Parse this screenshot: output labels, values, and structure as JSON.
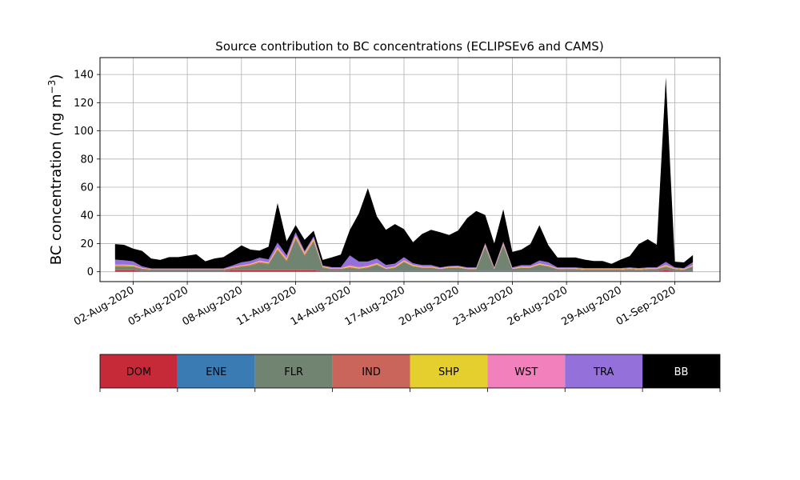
{
  "chart_data": {
    "type": "area",
    "stacked": true,
    "title": "Source contribution to BC concentrations (ECLIPSEv6 and CAMS)",
    "ylabel": "BC concentration (ng m⁻³)",
    "xlabel": "",
    "ylim": [
      -7,
      152
    ],
    "xlim": [
      "2020-07-31T04:00",
      "2020-09-03T12:00"
    ],
    "grid": true,
    "yticks": [
      0,
      20,
      40,
      60,
      80,
      100,
      120,
      140
    ],
    "xticks": [
      {
        "date": "2020-08-02",
        "label": "02-Aug-2020"
      },
      {
        "date": "2020-08-05",
        "label": "05-Aug-2020"
      },
      {
        "date": "2020-08-08",
        "label": "08-Aug-2020"
      },
      {
        "date": "2020-08-11",
        "label": "11-Aug-2020"
      },
      {
        "date": "2020-08-14",
        "label": "14-Aug-2020"
      },
      {
        "date": "2020-08-17",
        "label": "17-Aug-2020"
      },
      {
        "date": "2020-08-20",
        "label": "20-Aug-2020"
      },
      {
        "date": "2020-08-23",
        "label": "23-Aug-2020"
      },
      {
        "date": "2020-08-26",
        "label": "26-Aug-2020"
      },
      {
        "date": "2020-08-29",
        "label": "29-Aug-2020"
      },
      {
        "date": "2020-09-01",
        "label": "01-Sep-2020"
      }
    ],
    "x": [
      "2020-08-01T00:00",
      "2020-08-01T12:00",
      "2020-08-02T00:00",
      "2020-08-02T12:00",
      "2020-08-03T00:00",
      "2020-08-03T12:00",
      "2020-08-04T00:00",
      "2020-08-04T12:00",
      "2020-08-05T00:00",
      "2020-08-05T12:00",
      "2020-08-06T00:00",
      "2020-08-06T12:00",
      "2020-08-07T00:00",
      "2020-08-07T12:00",
      "2020-08-08T00:00",
      "2020-08-08T12:00",
      "2020-08-09T00:00",
      "2020-08-09T12:00",
      "2020-08-10T00:00",
      "2020-08-10T12:00",
      "2020-08-11T00:00",
      "2020-08-11T12:00",
      "2020-08-12T00:00",
      "2020-08-12T12:00",
      "2020-08-13T00:00",
      "2020-08-13T12:00",
      "2020-08-14T00:00",
      "2020-08-14T12:00",
      "2020-08-15T00:00",
      "2020-08-15T12:00",
      "2020-08-16T00:00",
      "2020-08-16T12:00",
      "2020-08-17T00:00",
      "2020-08-17T12:00",
      "2020-08-18T00:00",
      "2020-08-18T12:00",
      "2020-08-19T00:00",
      "2020-08-19T12:00",
      "2020-08-20T00:00",
      "2020-08-20T12:00",
      "2020-08-21T00:00",
      "2020-08-21T12:00",
      "2020-08-22T00:00",
      "2020-08-22T12:00",
      "2020-08-23T00:00",
      "2020-08-23T12:00",
      "2020-08-24T00:00",
      "2020-08-24T12:00",
      "2020-08-25T00:00",
      "2020-08-25T12:00",
      "2020-08-26T00:00",
      "2020-08-26T12:00",
      "2020-08-27T00:00",
      "2020-08-27T12:00",
      "2020-08-28T00:00",
      "2020-08-28T12:00",
      "2020-08-29T00:00",
      "2020-08-29T12:00",
      "2020-08-30T00:00",
      "2020-08-30T12:00",
      "2020-08-31T00:00",
      "2020-08-31T12:00",
      "2020-09-01T00:00",
      "2020-09-01T12:00",
      "2020-09-02T00:00"
    ],
    "series": [
      {
        "name": "DOM",
        "color": "#c62a38",
        "values": [
          1,
          1,
          1,
          0.5,
          0.5,
          0.5,
          0.5,
          0.5,
          0.5,
          0.5,
          0.5,
          0.5,
          0.5,
          1,
          1,
          1,
          1,
          1,
          1,
          1,
          1,
          1,
          1,
          0.5,
          0.5,
          0.5,
          0.5,
          0.5,
          0.5,
          0.5,
          0.5,
          0.5,
          0.5,
          0.5,
          0.5,
          0.5,
          0.5,
          0.5,
          0.5,
          0.5,
          0.5,
          0.5,
          0.5,
          0.5,
          0.5,
          0.5,
          0.5,
          0.5,
          0.5,
          0.5,
          0.5,
          0.5,
          0.5,
          0.5,
          0.5,
          0.5,
          0.5,
          0.5,
          0.5,
          0.5,
          0.5,
          1,
          0.5,
          0.5,
          0.5
        ]
      },
      {
        "name": "ENE",
        "color": "#3a7bb3",
        "values": [
          0.3,
          0.3,
          0.3,
          0.2,
          0.2,
          0.2,
          0.2,
          0.2,
          0.2,
          0.2,
          0.2,
          0.2,
          0.2,
          0.3,
          0.3,
          0.3,
          0.3,
          0.3,
          0.3,
          0.3,
          0.3,
          0.3,
          0.3,
          0.2,
          0.2,
          0.2,
          0.2,
          0.2,
          0.2,
          0.2,
          0.2,
          0.2,
          0.2,
          0.2,
          0.2,
          0.2,
          0.2,
          0.2,
          0.2,
          0.2,
          0.2,
          0.2,
          0.2,
          0.2,
          0.2,
          0.2,
          0.2,
          0.2,
          0.2,
          0.2,
          0.2,
          0.2,
          0.2,
          0.2,
          0.2,
          0.2,
          0.2,
          0.2,
          0.2,
          0.2,
          0.2,
          0.3,
          0.2,
          0.2,
          0.2
        ]
      },
      {
        "name": "FLR",
        "color": "#718371",
        "values": [
          2,
          2,
          2,
          1,
          0.5,
          0.5,
          0.5,
          0.5,
          0.5,
          0.5,
          0.5,
          0.5,
          0.5,
          1,
          2,
          3,
          5,
          4,
          14,
          6,
          22,
          10,
          20,
          2,
          1,
          1,
          2,
          1,
          2,
          4,
          1,
          2,
          6,
          3,
          2,
          2,
          1,
          2,
          2,
          1,
          1,
          17,
          1,
          18,
          1,
          2,
          2,
          4,
          3,
          1,
          1,
          1,
          0.5,
          0.5,
          0.5,
          0.5,
          0.5,
          1,
          0.5,
          1,
          1,
          2,
          1,
          0.5,
          3
        ]
      },
      {
        "name": "IND",
        "color": "#c9655a",
        "values": [
          0.8,
          0.8,
          0.6,
          0.5,
          0.3,
          0.3,
          0.3,
          0.3,
          0.3,
          0.3,
          0.3,
          0.3,
          0.3,
          0.5,
          0.6,
          0.6,
          0.6,
          0.6,
          0.8,
          0.8,
          0.8,
          0.8,
          0.8,
          0.5,
          0.4,
          0.4,
          0.5,
          0.5,
          0.5,
          0.5,
          0.4,
          0.4,
          0.5,
          0.4,
          0.4,
          0.4,
          0.3,
          0.3,
          0.4,
          0.3,
          0.3,
          0.6,
          0.3,
          0.6,
          0.3,
          0.3,
          0.3,
          0.4,
          0.3,
          0.3,
          0.3,
          0.3,
          0.3,
          0.3,
          0.3,
          0.3,
          0.3,
          0.3,
          0.3,
          0.3,
          0.3,
          0.5,
          0.3,
          0.3,
          0.4
        ]
      },
      {
        "name": "SHP",
        "color": "#e5cf2f",
        "values": [
          0.5,
          0.5,
          0.5,
          0.3,
          0.2,
          0.2,
          0.2,
          0.2,
          0.2,
          0.2,
          0.2,
          0.2,
          0.2,
          0.3,
          0.4,
          0.4,
          0.6,
          0.5,
          0.8,
          0.8,
          1,
          0.8,
          1,
          0.4,
          0.3,
          0.3,
          0.8,
          0.6,
          0.6,
          0.6,
          0.4,
          0.4,
          0.6,
          0.5,
          0.4,
          0.4,
          0.3,
          0.3,
          0.4,
          0.3,
          0.3,
          0.5,
          0.3,
          0.5,
          0.3,
          0.4,
          0.4,
          0.5,
          0.4,
          0.3,
          0.3,
          0.3,
          0.3,
          0.3,
          0.3,
          0.3,
          0.3,
          0.3,
          0.3,
          0.3,
          0.3,
          0.6,
          0.3,
          0.3,
          0.4
        ]
      },
      {
        "name": "WST",
        "color": "#f180bd",
        "values": [
          0.5,
          0.5,
          0.5,
          0.3,
          0.2,
          0.2,
          0.2,
          0.2,
          0.2,
          0.2,
          0.2,
          0.2,
          0.2,
          0.3,
          0.4,
          0.4,
          0.5,
          0.4,
          0.8,
          0.8,
          1,
          0.8,
          1,
          0.3,
          0.3,
          0.3,
          0.6,
          0.5,
          0.5,
          0.5,
          0.3,
          0.3,
          0.5,
          0.4,
          0.3,
          0.3,
          0.3,
          0.3,
          0.3,
          0.3,
          0.3,
          0.5,
          0.3,
          0.5,
          0.3,
          0.3,
          0.3,
          0.4,
          0.3,
          0.3,
          0.3,
          0.3,
          0.3,
          0.3,
          0.3,
          0.3,
          0.3,
          0.3,
          0.3,
          0.3,
          0.3,
          0.6,
          0.3,
          0.3,
          0.3
        ]
      },
      {
        "name": "TRA",
        "color": "#9470da",
        "values": [
          3.5,
          3,
          2.5,
          1,
          0.5,
          0.5,
          0.5,
          0.5,
          0.5,
          0.5,
          0.5,
          0.5,
          0.5,
          1,
          2,
          2,
          2,
          2,
          3,
          2,
          2,
          1,
          1,
          0.5,
          0.5,
          0.5,
          7,
          4,
          3,
          3,
          2,
          2,
          2,
          1,
          1,
          1,
          0.5,
          0.5,
          0.5,
          0.5,
          0.5,
          1,
          0.5,
          1,
          0.5,
          1,
          1,
          2,
          2,
          0.5,
          0.5,
          0.5,
          0.5,
          0.5,
          0.5,
          0.5,
          0.5,
          0.5,
          0.5,
          0.5,
          0.5,
          2,
          0.5,
          0.5,
          2
        ]
      },
      {
        "name": "BB",
        "color": "#000000",
        "values": [
          11,
          11,
          9,
          11,
          7,
          6,
          8,
          8,
          9,
          10,
          5,
          7,
          8,
          10,
          12,
          8,
          5,
          9,
          28,
          10,
          5,
          8,
          4,
          4,
          7,
          9,
          18,
          34,
          52,
          30,
          25,
          28,
          20,
          15,
          22,
          25,
          25,
          22,
          25,
          35,
          40,
          20,
          17,
          23,
          11,
          11,
          15,
          25,
          12,
          7,
          7,
          7,
          6,
          5,
          5,
          3,
          6,
          8,
          17,
          20,
          16,
          131,
          4,
          4,
          5
        ]
      }
    ]
  },
  "legend_bar": {
    "items": [
      {
        "label": "DOM",
        "color": "#c62a38",
        "text_color": "#000000"
      },
      {
        "label": "ENE",
        "color": "#3a7bb3",
        "text_color": "#000000"
      },
      {
        "label": "FLR",
        "color": "#718371",
        "text_color": "#000000"
      },
      {
        "label": "IND",
        "color": "#c9655a",
        "text_color": "#000000"
      },
      {
        "label": "SHP",
        "color": "#e5cf2f",
        "text_color": "#000000"
      },
      {
        "label": "WST",
        "color": "#f180bd",
        "text_color": "#000000"
      },
      {
        "label": "TRA",
        "color": "#9470da",
        "text_color": "#000000"
      },
      {
        "label": "BB",
        "color": "#000000",
        "text_color": "#ffffff"
      }
    ]
  }
}
